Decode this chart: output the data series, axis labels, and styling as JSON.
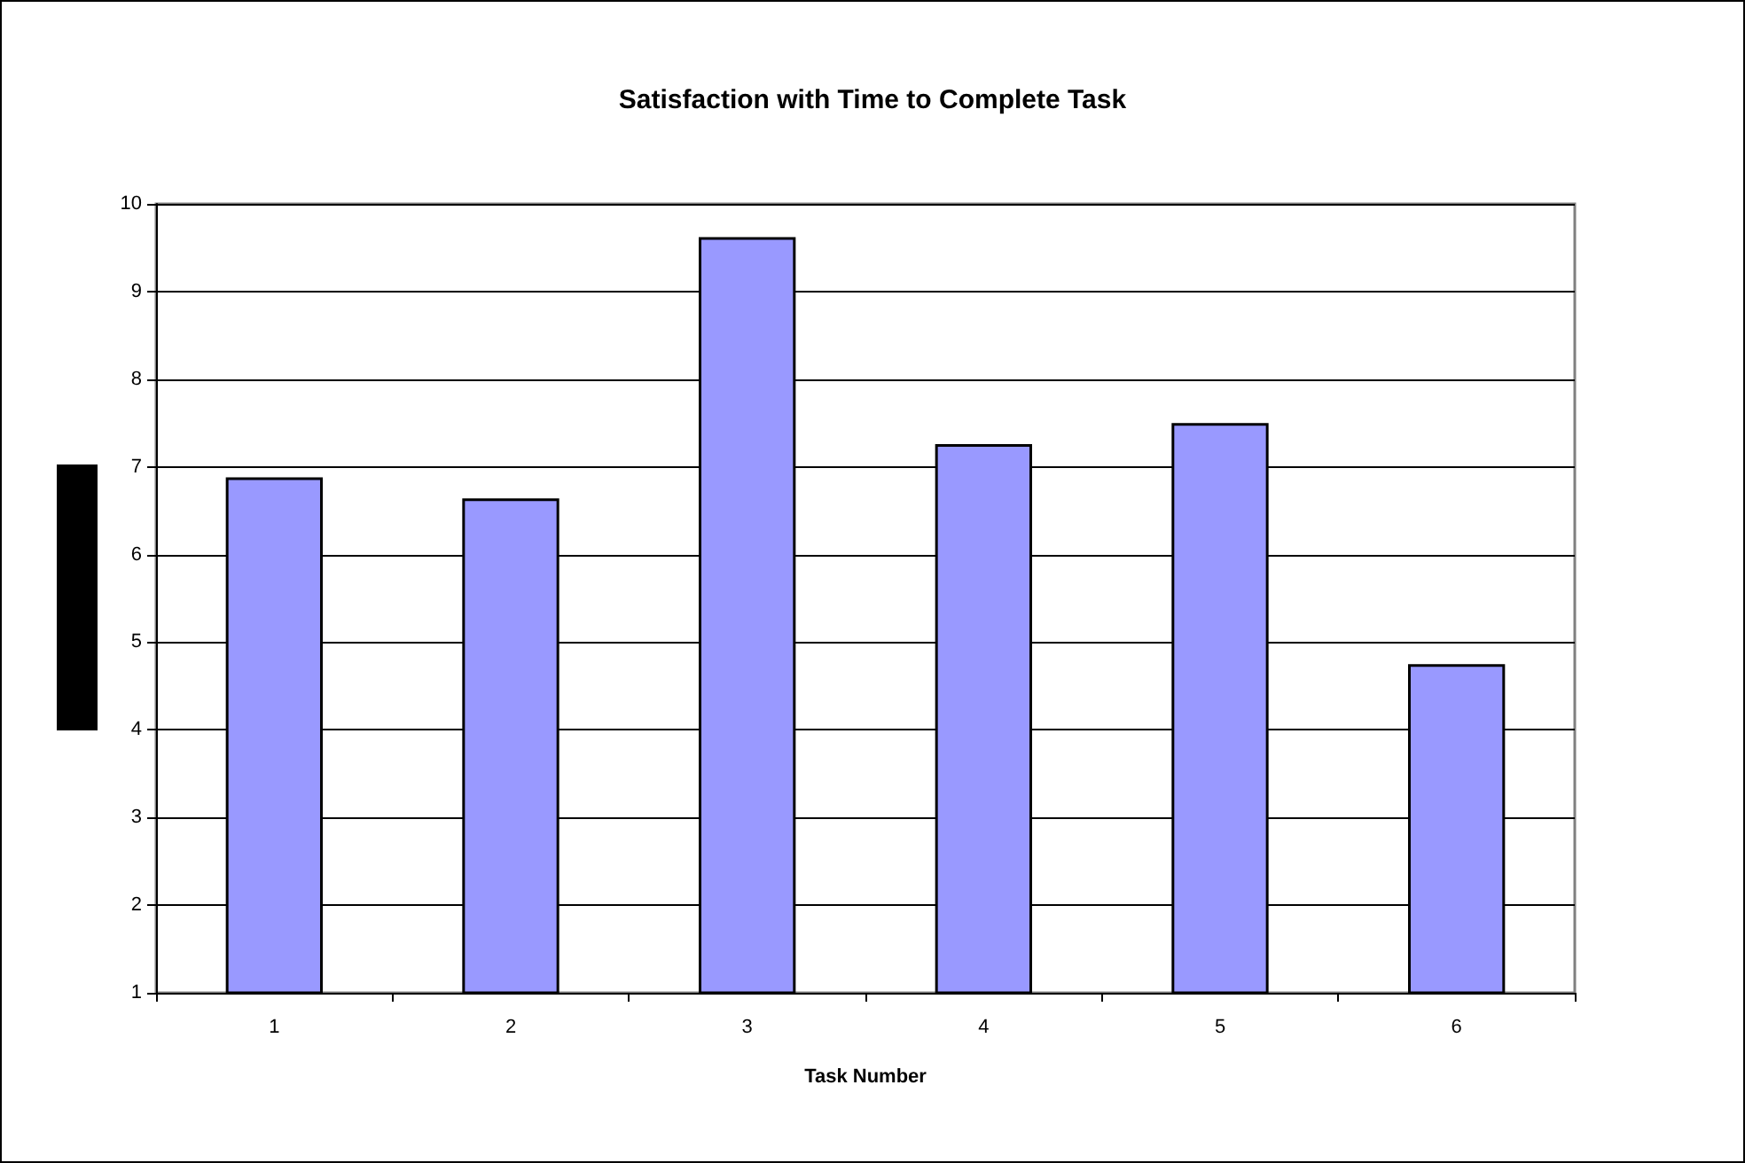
{
  "chart_data": {
    "type": "bar",
    "title": "Satisfaction with Time to Complete Task",
    "xlabel": "Task Number",
    "categories": [
      "1",
      "2",
      "3",
      "4",
      "5",
      "6"
    ],
    "values": [
      6.88,
      6.64,
      9.62,
      7.26,
      7.5,
      4.75
    ],
    "color": "#9999ff",
    "ylim": [
      1,
      10
    ],
    "yticks": [
      1,
      2,
      3,
      4,
      5,
      6,
      7,
      8,
      9,
      10
    ],
    "grid": "y"
  }
}
